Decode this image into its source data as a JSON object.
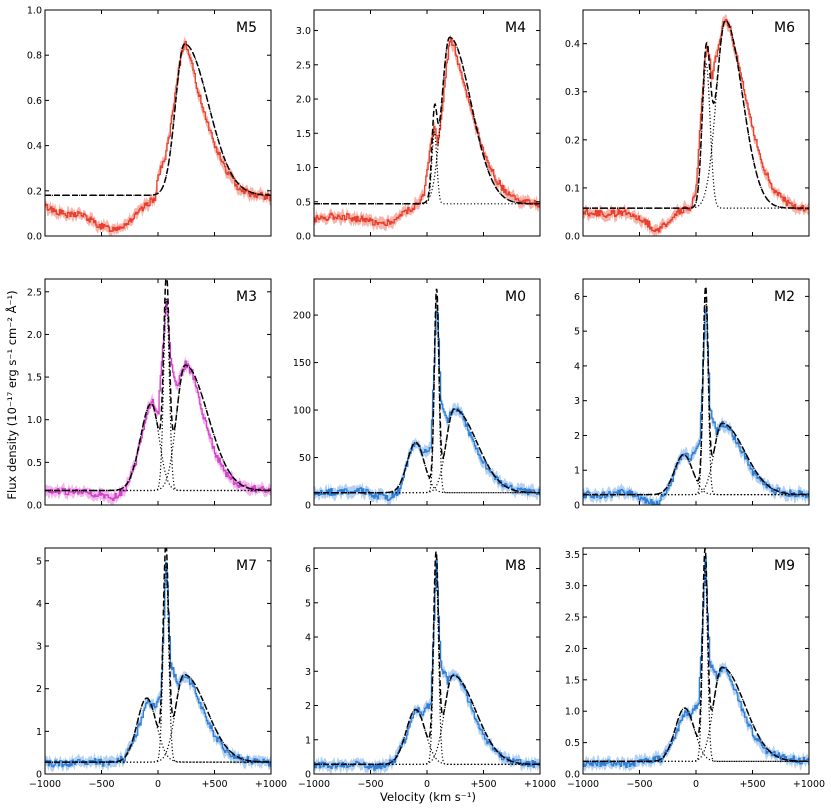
{
  "figure": {
    "xlabel": "Velocity (km s⁻¹)",
    "ylabel": "Flux density (10⁻¹⁷ erg s⁻¹ cm⁻² Å⁻¹)",
    "colors": {
      "red": "#e8402e",
      "red_band": "#f4a79c",
      "magenta": "#d442c8",
      "magenta_band": "#eeaaea",
      "blue": "#2e7fd6",
      "blue_band": "#a8c9ee",
      "fit": "#000000"
    }
  },
  "chart_data": [
    {
      "label": "M5",
      "type": "line",
      "color": "red",
      "xlim": [
        -1000,
        1000
      ],
      "ylim": [
        0,
        1.0
      ],
      "yticks": [
        0.0,
        0.2,
        0.4,
        0.6,
        0.8,
        1.0
      ],
      "ytick_labels": [
        "0.0",
        "0.2",
        "0.4",
        "0.6",
        "0.8",
        "1.0"
      ],
      "xticks": [
        -1000,
        -500,
        0,
        500,
        1000
      ],
      "xtick_labels": [
        "",
        "",
        "",
        "",
        ""
      ],
      "continuum": 0.18,
      "components": [
        {
          "center": 235,
          "amp": 0.67,
          "sigma_left": 80,
          "sigma_right": 210
        }
      ],
      "narrow": [],
      "observed": [
        [
          -1000,
          0.13
        ],
        [
          -900,
          0.11
        ],
        [
          -800,
          0.09
        ],
        [
          -700,
          0.1
        ],
        [
          -600,
          0.07
        ],
        [
          -500,
          0.04
        ],
        [
          -400,
          0.03
        ],
        [
          -300,
          0.05
        ],
        [
          -200,
          0.09
        ],
        [
          -100,
          0.14
        ],
        [
          -30,
          0.17
        ],
        [
          0,
          0.27
        ],
        [
          50,
          0.33
        ],
        [
          100,
          0.45
        ],
        [
          150,
          0.62
        ],
        [
          200,
          0.8
        ],
        [
          235,
          0.86
        ],
        [
          280,
          0.8
        ],
        [
          330,
          0.68
        ],
        [
          400,
          0.56
        ],
        [
          500,
          0.4
        ],
        [
          600,
          0.29
        ],
        [
          700,
          0.22
        ],
        [
          800,
          0.19
        ],
        [
          900,
          0.18
        ],
        [
          1000,
          0.17
        ]
      ]
    },
    {
      "label": "M4",
      "type": "line",
      "color": "red",
      "xlim": [
        -1000,
        1000
      ],
      "ylim": [
        0,
        3.3
      ],
      "yticks": [
        0.0,
        0.5,
        1.0,
        1.5,
        2.0,
        2.5,
        3.0
      ],
      "ytick_labels": [
        "0.0",
        "0.5",
        "1.0",
        "1.5",
        "2.0",
        "2.5",
        "3.0"
      ],
      "xticks": [
        -1000,
        -500,
        0,
        500,
        1000
      ],
      "xtick_labels": [
        "",
        "",
        "",
        "",
        ""
      ],
      "continuum": 0.47,
      "components": [
        {
          "center": 200,
          "amp": 2.43,
          "sigma_left": 70,
          "sigma_right": 190
        }
      ],
      "narrow": [
        {
          "center": 65,
          "amp": 1.05,
          "sigma": 22
        }
      ],
      "observed": [
        [
          -1000,
          0.25
        ],
        [
          -800,
          0.3
        ],
        [
          -600,
          0.25
        ],
        [
          -400,
          0.18
        ],
        [
          -300,
          0.22
        ],
        [
          -200,
          0.35
        ],
        [
          -100,
          0.45
        ],
        [
          -30,
          0.6
        ],
        [
          0,
          0.95
        ],
        [
          40,
          1.45
        ],
        [
          65,
          1.62
        ],
        [
          90,
          1.3
        ],
        [
          130,
          1.8
        ],
        [
          170,
          2.5
        ],
        [
          200,
          2.88
        ],
        [
          240,
          2.75
        ],
        [
          300,
          2.35
        ],
        [
          400,
          1.75
        ],
        [
          500,
          1.2
        ],
        [
          600,
          0.85
        ],
        [
          700,
          0.62
        ],
        [
          800,
          0.52
        ],
        [
          900,
          0.48
        ],
        [
          1000,
          0.46
        ]
      ]
    },
    {
      "label": "M6",
      "type": "line",
      "color": "red",
      "xlim": [
        -1000,
        1000
      ],
      "ylim": [
        0,
        0.47
      ],
      "yticks": [
        0.0,
        0.1,
        0.2,
        0.3,
        0.4
      ],
      "ytick_labels": [
        "0.0",
        "0.1",
        "0.2",
        "0.3",
        "0.4"
      ],
      "xticks": [
        -1000,
        -500,
        0,
        500,
        1000
      ],
      "xtick_labels": [
        "",
        "",
        "",
        "",
        ""
      ],
      "continuum": 0.058,
      "components": [
        {
          "center": 260,
          "amp": 0.39,
          "sigma_left": 80,
          "sigma_right": 150
        }
      ],
      "narrow": [
        {
          "center": 90,
          "amp": 0.3,
          "sigma": 35
        }
      ],
      "observed": [
        [
          -1000,
          0.05
        ],
        [
          -800,
          0.045
        ],
        [
          -600,
          0.05
        ],
        [
          -450,
          0.03
        ],
        [
          -350,
          0.01
        ],
        [
          -250,
          0.03
        ],
        [
          -150,
          0.05
        ],
        [
          -50,
          0.06
        ],
        [
          0,
          0.1
        ],
        [
          40,
          0.25
        ],
        [
          80,
          0.38
        ],
        [
          100,
          0.4
        ],
        [
          140,
          0.33
        ],
        [
          180,
          0.38
        ],
        [
          250,
          0.45
        ],
        [
          300,
          0.43
        ],
        [
          400,
          0.33
        ],
        [
          500,
          0.22
        ],
        [
          600,
          0.14
        ],
        [
          700,
          0.09
        ],
        [
          800,
          0.07
        ],
        [
          900,
          0.06
        ],
        [
          1000,
          0.055
        ]
      ]
    },
    {
      "label": "M3",
      "type": "line",
      "color": "magenta",
      "xlim": [
        -1000,
        1000
      ],
      "ylim": [
        0,
        2.65
      ],
      "yticks": [
        0.0,
        0.5,
        1.0,
        1.5,
        2.0,
        2.5
      ],
      "ytick_labels": [
        "0.0",
        "0.5",
        "1.0",
        "1.5",
        "2.0",
        "2.5"
      ],
      "xticks": [
        -1000,
        -500,
        0,
        500,
        1000
      ],
      "xtick_labels": [
        "",
        "",
        "",
        "",
        ""
      ],
      "continuum": 0.17,
      "components": [
        {
          "center": -60,
          "amp": 1.02,
          "sigma_left": 95,
          "sigma_right": 70
        },
        {
          "center": 240,
          "amp": 1.47,
          "sigma_left": 75,
          "sigma_right": 200
        }
      ],
      "narrow": [
        {
          "center": 75,
          "amp": 2.25,
          "sigma": 25
        }
      ],
      "observed": [
        [
          -1000,
          0.18
        ],
        [
          -800,
          0.15
        ],
        [
          -600,
          0.14
        ],
        [
          -400,
          0.08
        ],
        [
          -300,
          0.17
        ],
        [
          -200,
          0.5
        ],
        [
          -100,
          1.1
        ],
        [
          -50,
          1.2
        ],
        [
          0,
          1.1
        ],
        [
          40,
          1.9
        ],
        [
          75,
          2.43
        ],
        [
          110,
          1.7
        ],
        [
          160,
          1.4
        ],
        [
          240,
          1.65
        ],
        [
          300,
          1.55
        ],
        [
          400,
          1.05
        ],
        [
          500,
          0.62
        ],
        [
          600,
          0.35
        ],
        [
          700,
          0.25
        ],
        [
          800,
          0.2
        ],
        [
          900,
          0.18
        ],
        [
          1000,
          0.16
        ]
      ]
    },
    {
      "label": "M0",
      "type": "line",
      "color": "blue",
      "xlim": [
        -1000,
        1000
      ],
      "ylim": [
        0,
        238
      ],
      "yticks": [
        0,
        50,
        100,
        150,
        200
      ],
      "ytick_labels": [
        "0",
        "50",
        "100",
        "150",
        "200"
      ],
      "xticks": [
        -1000,
        -500,
        0,
        500,
        1000
      ],
      "xtick_labels": [
        "",
        "",
        "",
        "",
        ""
      ],
      "continuum": 13,
      "components": [
        {
          "center": -100,
          "amp": 53,
          "sigma_left": 75,
          "sigma_right": 75
        },
        {
          "center": 240,
          "amp": 88,
          "sigma_left": 70,
          "sigma_right": 200
        }
      ],
      "narrow": [
        {
          "center": 85,
          "amp": 205,
          "sigma": 20
        }
      ],
      "observed": [
        [
          -1000,
          13
        ],
        [
          -800,
          14
        ],
        [
          -600,
          15
        ],
        [
          -450,
          10
        ],
        [
          -350,
          8
        ],
        [
          -250,
          15
        ],
        [
          -150,
          55
        ],
        [
          -100,
          68
        ],
        [
          -50,
          55
        ],
        [
          30,
          60
        ],
        [
          85,
          220
        ],
        [
          120,
          110
        ],
        [
          180,
          90
        ],
        [
          240,
          104
        ],
        [
          300,
          95
        ],
        [
          400,
          68
        ],
        [
          500,
          44
        ],
        [
          600,
          28
        ],
        [
          700,
          20
        ],
        [
          800,
          16
        ],
        [
          900,
          14
        ],
        [
          1000,
          13
        ]
      ]
    },
    {
      "label": "M2",
      "type": "line",
      "color": "blue",
      "xlim": [
        -1000,
        1000
      ],
      "ylim": [
        0,
        6.5
      ],
      "yticks": [
        0,
        1,
        2,
        3,
        4,
        5,
        6
      ],
      "ytick_labels": [
        "0",
        "1",
        "2",
        "3",
        "4",
        "5",
        "6"
      ],
      "xticks": [
        -1000,
        -500,
        0,
        500,
        1000
      ],
      "xtick_labels": [
        "",
        "",
        "",
        "",
        ""
      ],
      "continuum": 0.3,
      "components": [
        {
          "center": -110,
          "amp": 1.15,
          "sigma_left": 80,
          "sigma_right": 80
        },
        {
          "center": 230,
          "amp": 2.05,
          "sigma_left": 70,
          "sigma_right": 200
        }
      ],
      "narrow": [
        {
          "center": 85,
          "amp": 5.7,
          "sigma": 22
        }
      ],
      "observed": [
        [
          -1000,
          0.3
        ],
        [
          -800,
          0.28
        ],
        [
          -600,
          0.38
        ],
        [
          -450,
          0.15
        ],
        [
          -350,
          0.05
        ],
        [
          -250,
          0.4
        ],
        [
          -150,
          1.3
        ],
        [
          -100,
          1.5
        ],
        [
          -50,
          1.35
        ],
        [
          30,
          1.8
        ],
        [
          85,
          6.0
        ],
        [
          120,
          2.8
        ],
        [
          180,
          2.1
        ],
        [
          230,
          2.35
        ],
        [
          300,
          2.15
        ],
        [
          400,
          1.55
        ],
        [
          500,
          0.95
        ],
        [
          600,
          0.6
        ],
        [
          700,
          0.42
        ],
        [
          800,
          0.35
        ],
        [
          900,
          0.32
        ],
        [
          1000,
          0.3
        ]
      ]
    },
    {
      "label": "M7",
      "type": "line",
      "color": "blue",
      "xlim": [
        -1000,
        1000
      ],
      "ylim": [
        0,
        5.3
      ],
      "yticks": [
        0,
        1,
        2,
        3,
        4,
        5
      ],
      "ytick_labels": [
        "0",
        "1",
        "2",
        "3",
        "4",
        "5"
      ],
      "xticks": [
        -1000,
        -500,
        0,
        500,
        1000
      ],
      "xtick_labels": [
        "−1000",
        "−500",
        "0",
        "+500",
        "+1000"
      ],
      "continuum": 0.28,
      "components": [
        {
          "center": -100,
          "amp": 1.5,
          "sigma_left": 85,
          "sigma_right": 85
        },
        {
          "center": 230,
          "amp": 2.05,
          "sigma_left": 75,
          "sigma_right": 200
        }
      ],
      "narrow": [
        {
          "center": 70,
          "amp": 4.7,
          "sigma": 24
        }
      ],
      "observed": [
        [
          -1000,
          0.25
        ],
        [
          -800,
          0.25
        ],
        [
          -600,
          0.3
        ],
        [
          -450,
          0.25
        ],
        [
          -300,
          0.35
        ],
        [
          -200,
          0.9
        ],
        [
          -100,
          1.7
        ],
        [
          -50,
          1.55
        ],
        [
          20,
          1.8
        ],
        [
          70,
          5.0
        ],
        [
          110,
          2.6
        ],
        [
          170,
          2.1
        ],
        [
          230,
          2.35
        ],
        [
          300,
          2.1
        ],
        [
          400,
          1.45
        ],
        [
          500,
          0.9
        ],
        [
          600,
          0.55
        ],
        [
          700,
          0.38
        ],
        [
          800,
          0.32
        ],
        [
          900,
          0.28
        ],
        [
          1000,
          0.27
        ]
      ]
    },
    {
      "label": "M8",
      "type": "line",
      "color": "blue",
      "xlim": [
        -1000,
        1000
      ],
      "ylim": [
        0,
        6.6
      ],
      "yticks": [
        0,
        1,
        2,
        3,
        4,
        5,
        6
      ],
      "ytick_labels": [
        "0",
        "1",
        "2",
        "3",
        "4",
        "5",
        "6"
      ],
      "xticks": [
        -1000,
        -500,
        0,
        500,
        1000
      ],
      "xtick_labels": [
        "−1000",
        "−500",
        "0",
        "+500",
        "+1000"
      ],
      "continuum": 0.28,
      "components": [
        {
          "center": -100,
          "amp": 1.6,
          "sigma_left": 85,
          "sigma_right": 85
        },
        {
          "center": 230,
          "amp": 2.6,
          "sigma_left": 75,
          "sigma_right": 200
        }
      ],
      "narrow": [
        {
          "center": 80,
          "amp": 5.7,
          "sigma": 22
        }
      ],
      "observed": [
        [
          -1000,
          0.28
        ],
        [
          -800,
          0.25
        ],
        [
          -600,
          0.3
        ],
        [
          -450,
          0.2
        ],
        [
          -300,
          0.35
        ],
        [
          -200,
          1.0
        ],
        [
          -100,
          1.9
        ],
        [
          -50,
          1.75
        ],
        [
          30,
          2.1
        ],
        [
          80,
          6.2
        ],
        [
          120,
          3.2
        ],
        [
          180,
          2.7
        ],
        [
          230,
          2.95
        ],
        [
          300,
          2.7
        ],
        [
          400,
          1.85
        ],
        [
          500,
          1.1
        ],
        [
          600,
          0.65
        ],
        [
          700,
          0.42
        ],
        [
          800,
          0.34
        ],
        [
          900,
          0.3
        ],
        [
          1000,
          0.28
        ]
      ]
    },
    {
      "label": "M9",
      "type": "line",
      "color": "blue",
      "xlim": [
        -1000,
        1000
      ],
      "ylim": [
        0,
        3.6
      ],
      "yticks": [
        0.0,
        0.5,
        1.0,
        1.5,
        2.0,
        2.5,
        3.0,
        3.5
      ],
      "ytick_labels": [
        "0.0",
        "0.5",
        "1.0",
        "1.5",
        "2.0",
        "2.5",
        "3.0",
        "3.5"
      ],
      "xticks": [
        -1000,
        -500,
        0,
        500,
        1000
      ],
      "xtick_labels": [
        "−1000",
        "−500",
        "0",
        "+500",
        "+1000"
      ],
      "continuum": 0.2,
      "components": [
        {
          "center": -100,
          "amp": 0.85,
          "sigma_left": 85,
          "sigma_right": 85
        },
        {
          "center": 230,
          "amp": 1.5,
          "sigma_left": 75,
          "sigma_right": 200
        }
      ],
      "narrow": [
        {
          "center": 80,
          "amp": 3.1,
          "sigma": 22
        }
      ],
      "observed": [
        [
          -1000,
          0.15
        ],
        [
          -800,
          0.18
        ],
        [
          -600,
          0.15
        ],
        [
          -450,
          0.2
        ],
        [
          -300,
          0.25
        ],
        [
          -200,
          0.55
        ],
        [
          -100,
          1.0
        ],
        [
          -50,
          0.95
        ],
        [
          20,
          1.15
        ],
        [
          80,
          3.38
        ],
        [
          120,
          1.75
        ],
        [
          180,
          1.55
        ],
        [
          240,
          1.7
        ],
        [
          300,
          1.55
        ],
        [
          400,
          1.05
        ],
        [
          500,
          0.65
        ],
        [
          600,
          0.4
        ],
        [
          700,
          0.3
        ],
        [
          800,
          0.25
        ],
        [
          900,
          0.22
        ],
        [
          1000,
          0.2
        ]
      ]
    }
  ]
}
